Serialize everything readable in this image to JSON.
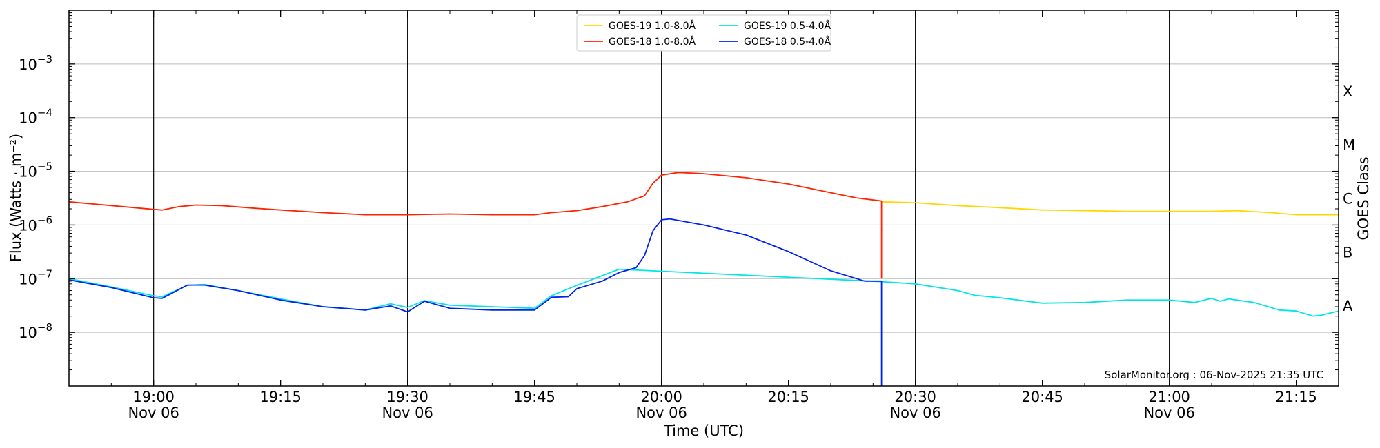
{
  "chart_data": {
    "type": "line",
    "title": "",
    "xlabel": "Time (UTC)",
    "ylabel": "Flux (Watts · m⁻²)",
    "right_label": "GOES Class",
    "y_scale": "log",
    "ylim": [
      1e-09,
      0.01
    ],
    "xlim": [
      "18:50",
      "21:20"
    ],
    "x_ticks": [
      {
        "t": "19:00",
        "line1": "19:00",
        "line2": "Nov 06"
      },
      {
        "t": "19:15",
        "line1": "19:15",
        "line2": ""
      },
      {
        "t": "19:30",
        "line1": "19:30",
        "line2": "Nov 06"
      },
      {
        "t": "19:45",
        "line1": "19:45",
        "line2": ""
      },
      {
        "t": "20:00",
        "line1": "20:00",
        "line2": "Nov 06"
      },
      {
        "t": "20:15",
        "line1": "20:15",
        "line2": ""
      },
      {
        "t": "20:30",
        "line1": "20:30",
        "line2": "Nov 06"
      },
      {
        "t": "20:45",
        "line1": "20:45",
        "line2": ""
      },
      {
        "t": "21:00",
        "line1": "21:00",
        "line2": "Nov 06"
      },
      {
        "t": "21:15",
        "line1": "21:15",
        "line2": ""
      }
    ],
    "y_ticks": [
      {
        "v": 1e-08,
        "base": "10",
        "exp": "−8"
      },
      {
        "v": 1e-07,
        "base": "10",
        "exp": "−7"
      },
      {
        "v": 1e-06,
        "base": "10",
        "exp": "−6"
      },
      {
        "v": 1e-05,
        "base": "10",
        "exp": "−5"
      },
      {
        "v": 0.0001,
        "base": "10",
        "exp": "−4"
      },
      {
        "v": 0.001,
        "base": "10",
        "exp": "−3"
      }
    ],
    "class_labels": [
      {
        "label": "A",
        "v": 1e-08
      },
      {
        "label": "B",
        "v": 1e-07
      },
      {
        "label": "C",
        "v": 1e-06
      },
      {
        "label": "M",
        "v": 1e-05
      },
      {
        "label": "X",
        "v": 0.0001
      }
    ],
    "vertical_lines": [
      "19:00",
      "19:30",
      "20:00",
      "20:30",
      "21:00"
    ],
    "grid": "horizontal at decades",
    "legend_position": "top-center",
    "credit": "SolarMonitor.org : 06-Nov-2025 21:35 UTC",
    "series": [
      {
        "name": "GOES-19 1.0-8.0Å",
        "color": "#ffd700",
        "points": [
          [
            "20:26",
            2.7e-06
          ],
          [
            "20:30",
            2.6e-06
          ],
          [
            "20:35",
            2.3e-06
          ],
          [
            "20:40",
            2.1e-06
          ],
          [
            "20:45",
            1.9e-06
          ],
          [
            "20:50",
            1.85e-06
          ],
          [
            "20:55",
            1.8e-06
          ],
          [
            "21:00",
            1.8e-06
          ],
          [
            "21:05",
            1.8e-06
          ],
          [
            "21:08",
            1.85e-06
          ],
          [
            "21:12",
            1.7e-06
          ],
          [
            "21:15",
            1.55e-06
          ],
          [
            "21:20",
            1.55e-06
          ]
        ]
      },
      {
        "name": "GOES-18 1.0-8.0Å",
        "color": "#ff2200",
        "points": [
          [
            "18:50",
            2.7e-06
          ],
          [
            "18:55",
            2.3e-06
          ],
          [
            "19:00",
            1.95e-06
          ],
          [
            "19:01",
            1.9e-06
          ],
          [
            "19:03",
            2.2e-06
          ],
          [
            "19:05",
            2.35e-06
          ],
          [
            "19:08",
            2.3e-06
          ],
          [
            "19:12",
            2.05e-06
          ],
          [
            "19:15",
            1.9e-06
          ],
          [
            "19:20",
            1.7e-06
          ],
          [
            "19:25",
            1.55e-06
          ],
          [
            "19:30",
            1.55e-06
          ],
          [
            "19:35",
            1.6e-06
          ],
          [
            "19:40",
            1.55e-06
          ],
          [
            "19:45",
            1.55e-06
          ],
          [
            "19:47",
            1.7e-06
          ],
          [
            "19:50",
            1.85e-06
          ],
          [
            "19:53",
            2.2e-06
          ],
          [
            "19:56",
            2.7e-06
          ],
          [
            "19:58",
            3.5e-06
          ],
          [
            "19:59",
            6e-06
          ],
          [
            "20:00",
            8.5e-06
          ],
          [
            "20:02",
            9.5e-06
          ],
          [
            "20:05",
            9e-06
          ],
          [
            "20:10",
            7.6e-06
          ],
          [
            "20:15",
            5.8e-06
          ],
          [
            "20:20",
            4e-06
          ],
          [
            "20:23",
            3.2e-06
          ],
          [
            "20:26",
            2.8e-06
          ],
          [
            "20:26",
            1e-07
          ]
        ]
      },
      {
        "name": "GOES-19 0.5-4.0Å",
        "color": "#00e5e5",
        "points": [
          [
            "18:50",
            1e-07
          ],
          [
            "18:55",
            7e-08
          ],
          [
            "19:00",
            4.8e-08
          ],
          [
            "19:01",
            4.6e-08
          ],
          [
            "19:04",
            7.5e-08
          ],
          [
            "19:06",
            7.8e-08
          ],
          [
            "19:10",
            6e-08
          ],
          [
            "19:15",
            4.2e-08
          ],
          [
            "19:20",
            3e-08
          ],
          [
            "19:25",
            2.6e-08
          ],
          [
            "19:28",
            3.4e-08
          ],
          [
            "19:30",
            2.9e-08
          ],
          [
            "19:32",
            3.9e-08
          ],
          [
            "19:35",
            3.2e-08
          ],
          [
            "19:40",
            3e-08
          ],
          [
            "19:45",
            2.8e-08
          ],
          [
            "19:47",
            4.8e-08
          ],
          [
            "19:50",
            7.5e-08
          ],
          [
            "19:55",
            1.5e-07
          ],
          [
            "20:26",
            8.8e-08
          ],
          [
            "20:30",
            8e-08
          ],
          [
            "20:35",
            6e-08
          ],
          [
            "20:37",
            4.9e-08
          ],
          [
            "20:40",
            4.4e-08
          ],
          [
            "20:45",
            3.5e-08
          ],
          [
            "20:50",
            3.6e-08
          ],
          [
            "20:55",
            4e-08
          ],
          [
            "21:00",
            4e-08
          ],
          [
            "21:03",
            3.6e-08
          ],
          [
            "21:05",
            4.3e-08
          ],
          [
            "21:06",
            3.8e-08
          ],
          [
            "21:07",
            4.2e-08
          ],
          [
            "21:10",
            3.6e-08
          ],
          [
            "21:13",
            2.6e-08
          ],
          [
            "21:15",
            2.5e-08
          ],
          [
            "21:17",
            2e-08
          ],
          [
            "21:18",
            2.1e-08
          ],
          [
            "21:20",
            2.5e-08
          ]
        ]
      },
      {
        "name": "GOES-18 0.5-4.0Å",
        "color": "#0022ee",
        "points": [
          [
            "18:50",
            9.5e-08
          ],
          [
            "18:55",
            6.8e-08
          ],
          [
            "19:00",
            4.4e-08
          ],
          [
            "19:01",
            4.3e-08
          ],
          [
            "19:04",
            7.6e-08
          ],
          [
            "19:06",
            7.6e-08
          ],
          [
            "19:10",
            6e-08
          ],
          [
            "19:15",
            4e-08
          ],
          [
            "19:20",
            3e-08
          ],
          [
            "19:25",
            2.6e-08
          ],
          [
            "19:28",
            3.1e-08
          ],
          [
            "19:30",
            2.4e-08
          ],
          [
            "19:32",
            3.8e-08
          ],
          [
            "19:35",
            2.8e-08
          ],
          [
            "19:40",
            2.6e-08
          ],
          [
            "19:45",
            2.6e-08
          ],
          [
            "19:47",
            4.5e-08
          ],
          [
            "19:49",
            4.6e-08
          ],
          [
            "19:50",
            6.5e-08
          ],
          [
            "19:53",
            9e-08
          ],
          [
            "19:55",
            1.3e-07
          ],
          [
            "19:57",
            1.6e-07
          ],
          [
            "19:58",
            2.7e-07
          ],
          [
            "19:59",
            7.8e-07
          ],
          [
            "20:00",
            1.25e-06
          ],
          [
            "20:01",
            1.3e-06
          ],
          [
            "20:05",
            1e-06
          ],
          [
            "20:10",
            6.5e-07
          ],
          [
            "20:15",
            3.2e-07
          ],
          [
            "20:20",
            1.4e-07
          ],
          [
            "20:24",
            9e-08
          ],
          [
            "20:26",
            9e-08
          ],
          [
            "20:26",
            1e-09
          ]
        ]
      }
    ]
  }
}
